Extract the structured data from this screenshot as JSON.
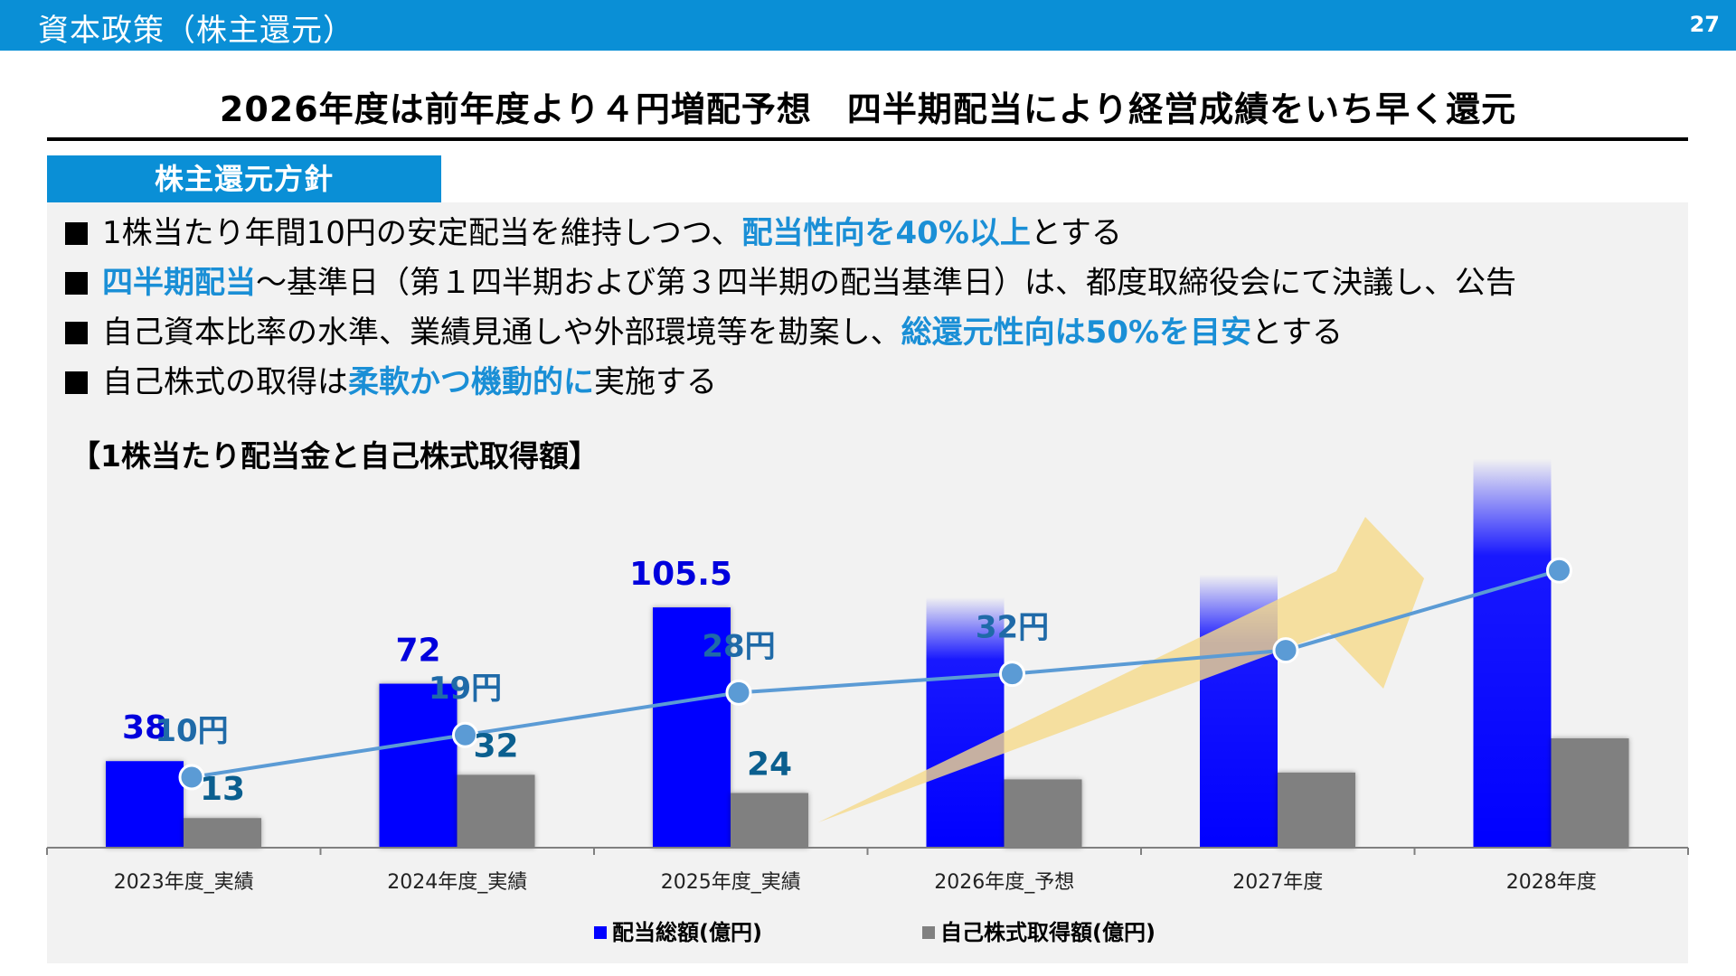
{
  "header": {
    "title": "資本政策（株主還元）",
    "page_number": "27"
  },
  "headline": "2026年度は前年度より４円増配予想　四半期配当により経営成績をいち早く還元",
  "policy": {
    "tab_label": "株主還元方針",
    "items": [
      {
        "pre": "1株当たり年間10円の安定配当を維持しつつ、",
        "hl": "配当性向を40%以上",
        "post": "とする"
      },
      {
        "pre": "",
        "hl": "四半期配当",
        "post": "〜基準日（第１四半期および第３四半期の配当基準日）は、都度取締役会にて決議し、公告"
      },
      {
        "pre": "自己資本比率の水準、業績見通しや外部環境等を勘案し、",
        "hl": "総還元性向は50%を目安",
        "post": "とする"
      },
      {
        "pre": "自己株式の取得は",
        "hl": "柔軟かつ機動的に",
        "post": "実施する"
      }
    ]
  },
  "chart_title": "【1株当たり配当金と自己株式取得額】",
  "colors": {
    "brand": "#0a8fd6",
    "dividend_bar": "#0000ff",
    "buyback_bar": "#808080",
    "dps_line": "#5b9bd5",
    "highlight": "#1a8fd6",
    "arrow": "#f5d98a"
  },
  "legend": {
    "dividend": "配当総額(億円)",
    "buyback": "自己株式取得額(億円)"
  },
  "chart_data": {
    "type": "bar",
    "categories": [
      "2023年度_実績",
      "2024年度_実績",
      "2025年度_実績",
      "2026年度_予想",
      "2027年度",
      "2028年度"
    ],
    "series": [
      {
        "name": "配当総額(億円)",
        "values": [
          38,
          72,
          105.5,
          110,
          120,
          171
        ],
        "labels": [
          "38",
          "72",
          "105.5",
          "",
          "",
          ""
        ],
        "color": "#0000ff"
      },
      {
        "name": "自己株式取得額(億円)",
        "values": [
          13,
          32,
          24,
          30,
          33,
          48
        ],
        "labels": [
          "13",
          "32",
          "24",
          "",
          "",
          ""
        ],
        "color": "#808080"
      }
    ],
    "dps_line": {
      "values": [
        10,
        19,
        28,
        32,
        37,
        54
      ],
      "labels": [
        "10円",
        "19円",
        "28円",
        "32円",
        "",
        ""
      ],
      "color": "#5b9bd5"
    },
    "notes": "Dividend bars for 2026–2028 are drawn with a faded (gradient) top; a large yellow arrow indicates an upward trend."
  }
}
